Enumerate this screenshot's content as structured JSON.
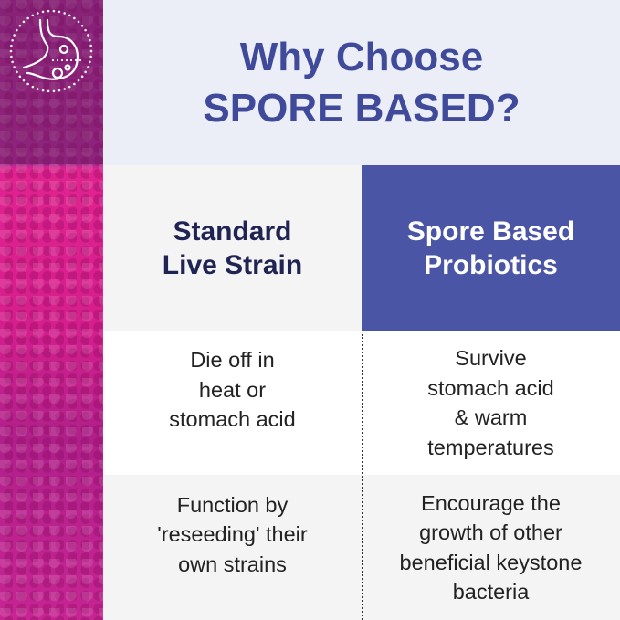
{
  "header": {
    "title_line1": "Why Choose",
    "title_line2": "SPORE BASED?"
  },
  "colors": {
    "title": "#3f4a9a",
    "accent_panel": "#4a55a5",
    "left_header_text": "#1f2452",
    "strip": "#d61f8c"
  },
  "icon": "stomach-icon",
  "columns": [
    {
      "heading_line1": "Standard",
      "heading_line2": "Live Strain"
    },
    {
      "heading_line1": "Spore Based",
      "heading_line2": "Probiotics"
    }
  ],
  "rows": [
    {
      "left": [
        "Die off in",
        "heat or",
        "stomach acid"
      ],
      "right": [
        "Survive",
        "stomach acid",
        "& warm",
        "temperatures"
      ]
    },
    {
      "left": [
        "Function by",
        "'reseeding' their",
        "own strains"
      ],
      "right": [
        "Encourage the",
        "growth of other",
        "beneficial keystone",
        "bacteria"
      ]
    }
  ]
}
